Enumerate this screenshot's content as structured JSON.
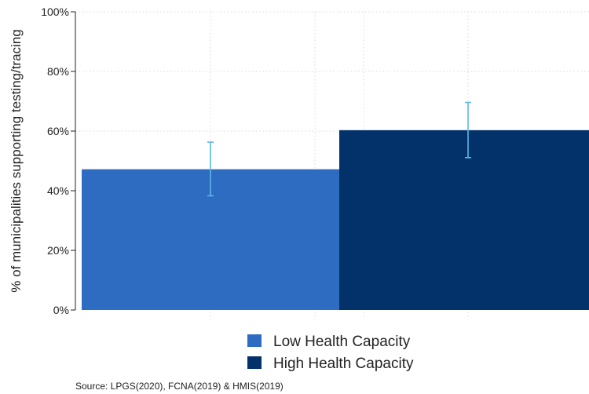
{
  "chart_data": {
    "type": "bar",
    "title": "",
    "xlabel": "",
    "ylabel": "% of municipalities supporting testing/tracing",
    "ylim": [
      0,
      100
    ],
    "y_ticks": [
      0,
      20,
      40,
      60,
      80,
      100
    ],
    "y_tick_labels": [
      "0%",
      "20%",
      "40%",
      "60%",
      "80%",
      "100%"
    ],
    "grid": "dotted",
    "legend_position": "bottom",
    "series": [
      {
        "name": "Low Health Capacity",
        "color": "#2d6cc0",
        "value": 47.2,
        "ci_low": 38.3,
        "ci_high": 56.3
      },
      {
        "name": "High Health Capacity",
        "color": "#03326a",
        "value": 60.3,
        "ci_low": 51.1,
        "ci_high": 69.6
      }
    ],
    "error_bar_color": "#5bb8e6",
    "source": "Source: LPGS(2020), FCNA(2019) & HMIS(2019)"
  }
}
